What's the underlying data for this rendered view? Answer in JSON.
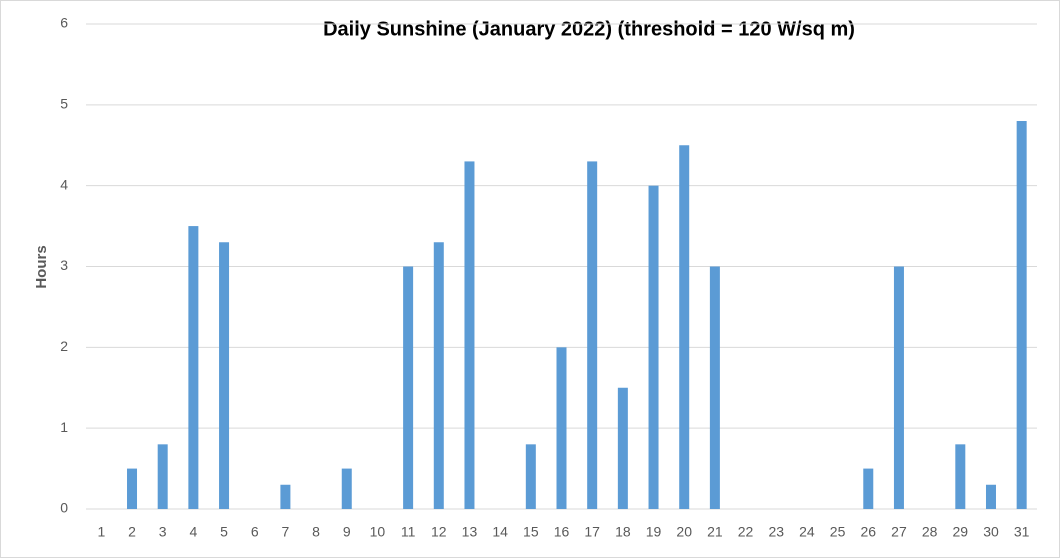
{
  "chart_data": {
    "type": "bar",
    "title": "Daily Sunshine (January 2022) (threshold = 120 W/sq m)",
    "y_label": "Hours",
    "categories": [
      "1",
      "2",
      "3",
      "4",
      "5",
      "6",
      "7",
      "8",
      "9",
      "10",
      "11",
      "12",
      "13",
      "14",
      "15",
      "16",
      "17",
      "18",
      "19",
      "20",
      "21",
      "22",
      "23",
      "24",
      "25",
      "26",
      "27",
      "28",
      "29",
      "30",
      "31"
    ],
    "values": [
      0,
      0.5,
      0.8,
      3.5,
      3.3,
      0,
      0.3,
      0,
      0.5,
      0,
      3.0,
      3.3,
      4.3,
      0,
      0.8,
      2.0,
      4.3,
      1.5,
      4.0,
      4.5,
      3.0,
      0,
      0,
      0,
      0,
      0.5,
      3.0,
      0,
      0.8,
      0.3,
      4.8
    ],
    "color": "#5b9bd5",
    "ylim": [
      0,
      6
    ],
    "yticks": [
      0,
      1,
      2,
      3,
      4,
      5,
      6
    ],
    "grid": true
  }
}
